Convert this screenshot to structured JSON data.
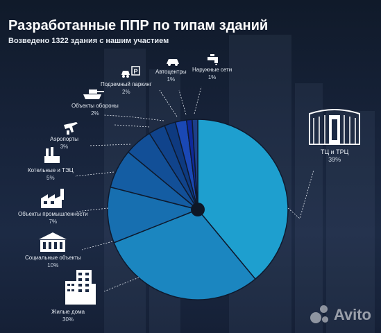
{
  "header": {
    "title": "Разработанные ППР по типам зданий",
    "subtitle": "Возведено 1322 здания с нашим участием"
  },
  "watermark": {
    "text": "Avito"
  },
  "chart_data": {
    "type": "pie",
    "title": "Разработанные ППР по типам зданий",
    "subtitle": "Возведено 1322 здания с нашим участием",
    "legend": "none",
    "slices": [
      {
        "name": "ТЦ и ТРЦ",
        "value": 39,
        "label": "39%",
        "color": "#1e9fcf",
        "icon": "shopping-center-icon"
      },
      {
        "name": "Жилые дома",
        "value": 30,
        "label": "30%",
        "color": "#1b86c0",
        "icon": "residential-building-icon"
      },
      {
        "name": "Социальные объекты",
        "value": 10,
        "label": "10%",
        "color": "#176fb0",
        "icon": "social-building-icon"
      },
      {
        "name": "Объекты промышленности",
        "value": 7,
        "label": "7%",
        "color": "#145da3",
        "icon": "factory-icon"
      },
      {
        "name": "Котельные и ТЭЦ",
        "value": 5,
        "label": "5%",
        "color": "#124f97",
        "icon": "boiler-plant-icon"
      },
      {
        "name": "Аэропорты",
        "value": 3,
        "label": "3%",
        "color": "#10438b",
        "icon": "airport-icon"
      },
      {
        "name": "Объекты обороны",
        "value": 2,
        "label": "2%",
        "color": "#0e3a80",
        "icon": "tank-icon"
      },
      {
        "name": "Подземный паркинг",
        "value": 2,
        "label": "2%",
        "color": "#1a48b5",
        "icon": "parking-icon"
      },
      {
        "name": "Автоцентры",
        "value": 1,
        "label": "1%",
        "color": "#0f2a9a",
        "icon": "car-service-icon"
      },
      {
        "name": "Наружные сети",
        "value": 1,
        "label": "1%",
        "color": "#1d3f8a",
        "icon": "water-tap-icon"
      }
    ]
  }
}
